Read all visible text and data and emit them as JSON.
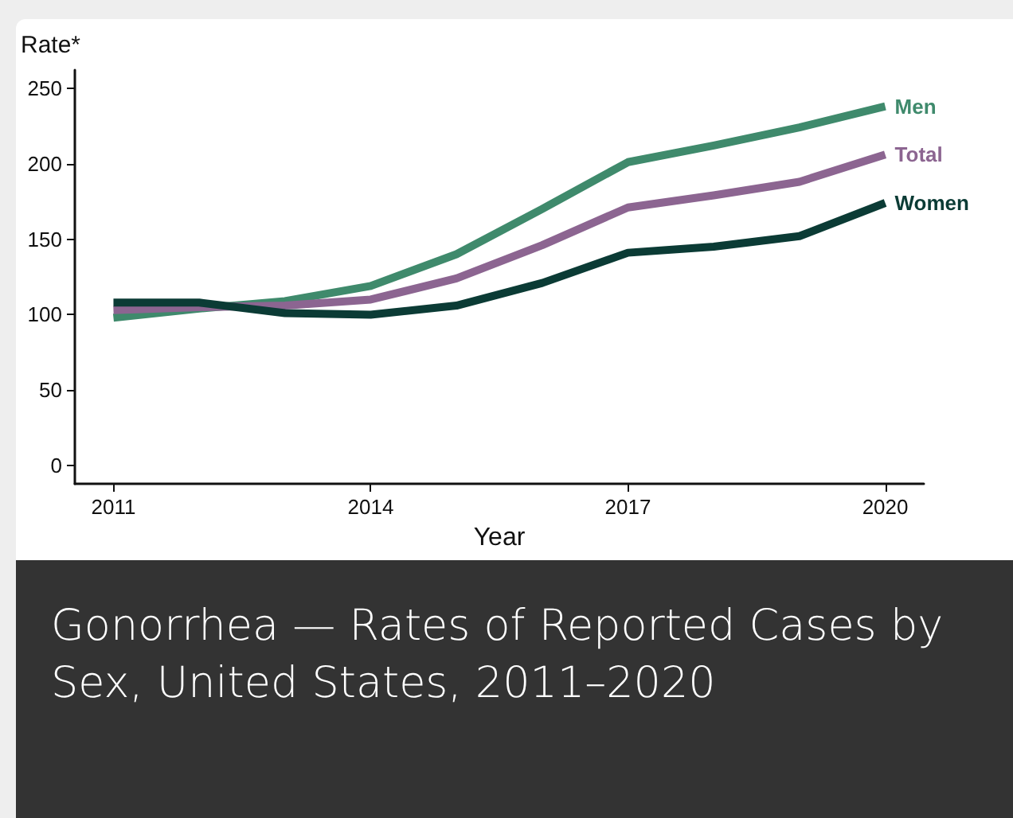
{
  "chart_data": {
    "type": "line",
    "title": "Gonorrhea — Rates of Reported Cases by Sex, United States, 2011–2020",
    "xlabel": "Year",
    "ylabel": "Rate*",
    "x": [
      2011,
      2012,
      2013,
      2014,
      2015,
      2016,
      2017,
      2018,
      2019,
      2020
    ],
    "xlim": [
      2010.55,
      2020.45
    ],
    "xticks": [
      2011,
      2014,
      2017,
      2020
    ],
    "ylim": [
      -12,
      262
    ],
    "yticks": [
      0,
      50,
      100,
      150,
      200,
      250
    ],
    "grid": false,
    "legend": false,
    "marker": "none",
    "line_style": "solid",
    "series": [
      {
        "name": "Men",
        "color": "#3f8a6c",
        "values": [
          98,
          104,
          109,
          119,
          140,
          170,
          201,
          212,
          224,
          238
        ]
      },
      {
        "name": "Total",
        "color": "#8c6591",
        "values": [
          103,
          105,
          106,
          110,
          124,
          146,
          171,
          179,
          188,
          206
        ]
      },
      {
        "name": "Women",
        "color": "#0b3b35",
        "values": [
          108,
          108,
          101,
          100,
          106,
          121,
          141,
          145,
          152,
          174
        ]
      }
    ]
  }
}
